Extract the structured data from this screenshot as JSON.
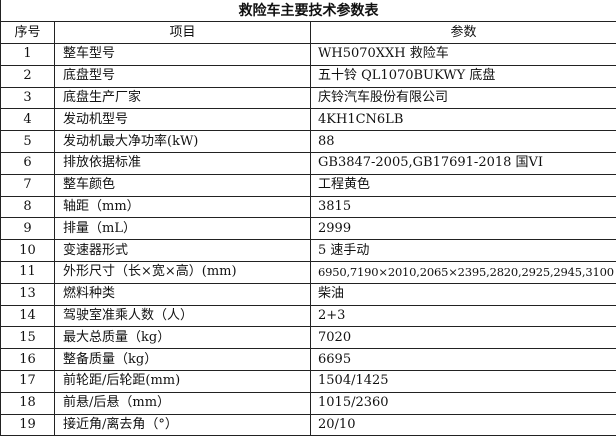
{
  "title": "救险车主要技术参数表",
  "headers": [
    "序号",
    "项目",
    "参数"
  ],
  "rows": [
    {
      "no": "1",
      "item": "整车型号",
      "value": "WH5070XXH 救险车"
    },
    {
      "no": "2",
      "item": "底盘型号",
      "value": "五十铃 QL1070BUKWY 底盘"
    },
    {
      "no": "3",
      "item": "底盘生产厂家",
      "value": "庆铃汽车股份有限公司"
    },
    {
      "no": "4",
      "item": "发动机型号",
      "value": "4KH1CN6LB"
    },
    {
      "no": "5",
      "item": "发动机最大净功率(kW)",
      "value": "88"
    },
    {
      "no": "6",
      "item": "排放依据标准",
      "value": "GB3847-2005,GB17691-2018 国VI"
    },
    {
      "no": "7",
      "item": "整车颜色",
      "value": "工程黄色"
    },
    {
      "no": "8",
      "item": "轴距（mm）",
      "value": "3815"
    },
    {
      "no": "9",
      "item": "排量（mL）",
      "value": "2999"
    },
    {
      "no": "10",
      "item": "变速器形式",
      "value": "5 速手动"
    },
    {
      "no": "11",
      "item": "外形尺寸（长×宽×高）(mm)",
      "value": "6950,7190×2010,2065×2395,2820,2925,2945,3100"
    },
    {
      "no": "13",
      "item": "燃料种类",
      "value": "柴油"
    },
    {
      "no": "14",
      "item": "驾驶室准乘人数（人）",
      "value": "2+3"
    },
    {
      "no": "15",
      "item": "最大总质量（kg）",
      "value": "7020"
    },
    {
      "no": "16",
      "item": "整备质量（kg）",
      "value": "6695"
    },
    {
      "no": "17",
      "item": "前轮距/后轮距(mm)",
      "value": "1504/1425"
    },
    {
      "no": "18",
      "item": "前悬/后悬（mm）",
      "value": "1015/2360"
    },
    {
      "no": "19",
      "item": "接近角/离去角（°）",
      "value": "20/10"
    }
  ]
}
